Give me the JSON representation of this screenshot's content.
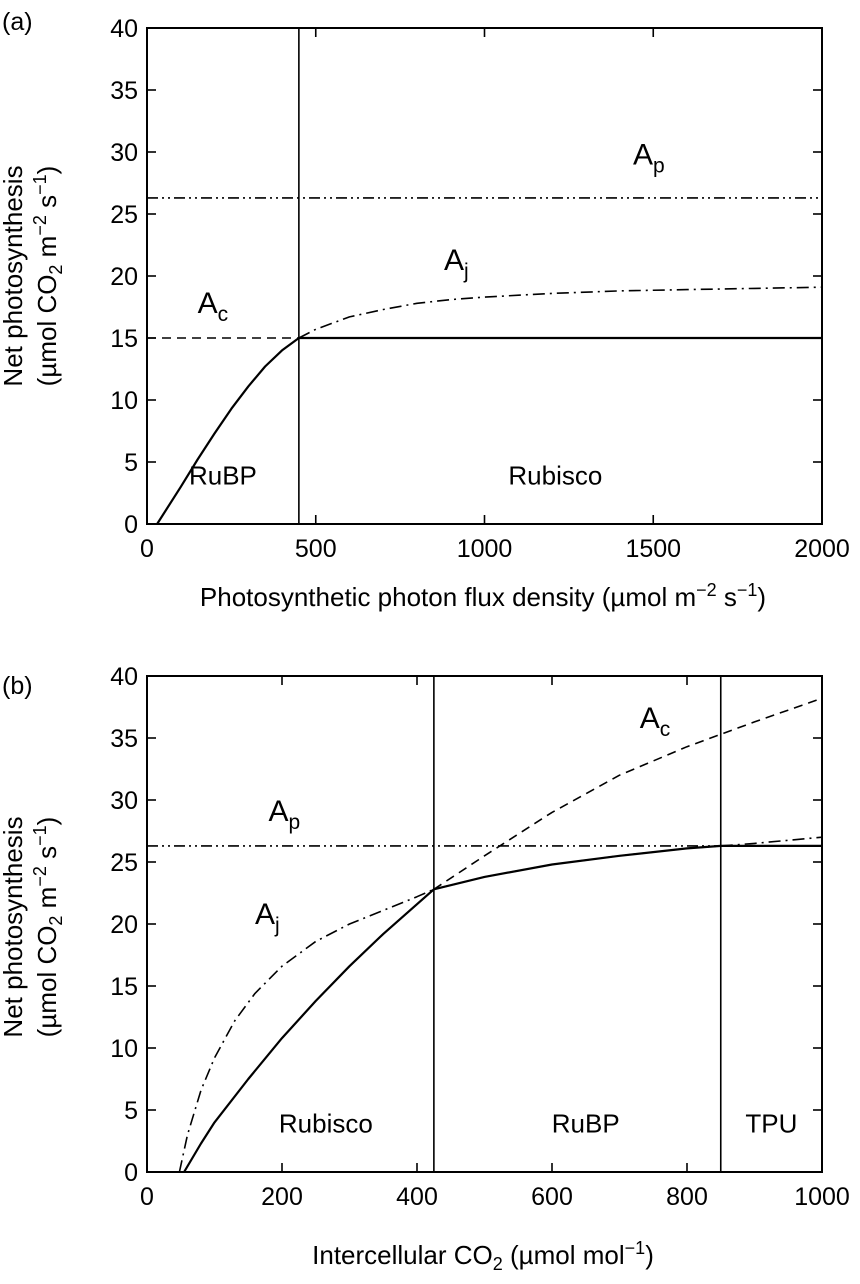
{
  "chart_data": [
    {
      "type": "line",
      "panel_label": "(a)",
      "xlabel": {
        "pre": "Photosynthetic photon flux density (µmol m",
        "sup1": "−2",
        "mid": " s",
        "sup2": "−1",
        "post": ")"
      },
      "ylabel": {
        "line1": "Net photosynthesis",
        "line2": {
          "pre": "(µmol CO",
          "sub": "2",
          "mid": " m",
          "sup1": "−2",
          "mid2": " s",
          "sup2": "−1",
          "post": ")"
        }
      },
      "xlim": [
        0,
        2000
      ],
      "ylim": [
        0,
        40
      ],
      "xticks": [
        0,
        500,
        1000,
        1500,
        2000
      ],
      "yticks": [
        0,
        5,
        10,
        15,
        20,
        25,
        30,
        35,
        40
      ],
      "series": [
        {
          "name": "Ap",
          "label": {
            "main": "A",
            "sub": "p"
          },
          "style": "dash-dot-dot",
          "x": [
            0,
            2000
          ],
          "y": [
            26.3,
            26.3
          ]
        },
        {
          "name": "Aj",
          "label": {
            "main": "A",
            "sub": "j"
          },
          "style": "dash-dot",
          "x": [
            450,
            500,
            600,
            700,
            800,
            900,
            1000,
            1200,
            1400,
            1600,
            1800,
            2000
          ],
          "y": [
            15.0,
            15.7,
            16.7,
            17.3,
            17.8,
            18.1,
            18.3,
            18.6,
            18.8,
            18.9,
            19.0,
            19.1
          ]
        },
        {
          "name": "Ac",
          "label": {
            "main": "A",
            "sub": "c"
          },
          "style": "dashed",
          "x": [
            0,
            450
          ],
          "y": [
            15.0,
            15.0
          ]
        },
        {
          "name": "A",
          "style": "solid",
          "x": [
            30,
            100,
            150,
            200,
            250,
            300,
            350,
            400,
            450,
            2000
          ],
          "y": [
            0,
            3.0,
            5.2,
            7.3,
            9.3,
            11.1,
            12.7,
            14.0,
            15.0,
            15.0
          ]
        }
      ],
      "transitions": [
        450
      ],
      "regions": [
        {
          "label": "RuBP",
          "x": 225,
          "y": 3.2
        },
        {
          "label": "Rubisco",
          "x": 1210,
          "y": 3.2
        }
      ],
      "curve_label_positions": [
        {
          "series": "Ap",
          "x": 1440,
          "y": 29.0
        },
        {
          "series": "Aj",
          "x": 880,
          "y": 20.5
        },
        {
          "series": "Ac",
          "x": 150,
          "y": 17.0
        }
      ],
      "legend": "none",
      "grid": false
    },
    {
      "type": "line",
      "panel_label": "(b)",
      "xlabel": {
        "pre": "Intercellular CO",
        "sub": "2",
        "mid": " (µmol mol",
        "sup": "−1",
        "post": ")"
      },
      "ylabel": {
        "line1": "Net photosynthesis",
        "line2": {
          "pre": "(µmol CO",
          "sub": "2",
          "mid": " m",
          "sup1": "−2",
          "mid2": " s",
          "sup2": "−1",
          "post": ")"
        }
      },
      "xlim": [
        0,
        1000
      ],
      "ylim": [
        0,
        40
      ],
      "xticks": [
        0,
        200,
        400,
        600,
        800,
        1000
      ],
      "yticks": [
        0,
        5,
        10,
        15,
        20,
        25,
        30,
        35,
        40
      ],
      "series": [
        {
          "name": "Ap",
          "label": {
            "main": "A",
            "sub": "p"
          },
          "style": "dash-dot-dot",
          "x": [
            0,
            1000
          ],
          "y": [
            26.3,
            26.3
          ]
        },
        {
          "name": "Ac",
          "label": {
            "main": "A",
            "sub": "c"
          },
          "style": "dashed",
          "x": [
            425,
            500,
            600,
            700,
            800,
            850,
            900,
            1000
          ],
          "y": [
            22.8,
            25.5,
            29.0,
            32.0,
            34.3,
            35.3,
            36.3,
            38.2
          ]
        },
        {
          "name": "Aj",
          "label": {
            "main": "A",
            "sub": "j"
          },
          "style": "dash-dot",
          "x": [
            48,
            60,
            80,
            100,
            130,
            160,
            200,
            250,
            300,
            350,
            400,
            425,
            500,
            600,
            700,
            800,
            850,
            900,
            1000
          ],
          "y": [
            0,
            3.0,
            6.6,
            9.2,
            12.2,
            14.4,
            16.6,
            18.6,
            20.0,
            21.1,
            22.2,
            22.8,
            23.8,
            24.8,
            25.5,
            26.1,
            26.3,
            26.5,
            27.0
          ]
        },
        {
          "name": "A",
          "style": "solid",
          "x": [
            55,
            80,
            100,
            150,
            200,
            250,
            300,
            350,
            400,
            425,
            500,
            600,
            700,
            800,
            850,
            1000
          ],
          "y": [
            0,
            2.3,
            4.0,
            7.5,
            10.8,
            13.8,
            16.6,
            19.2,
            21.6,
            22.8,
            23.8,
            24.8,
            25.5,
            26.1,
            26.3,
            26.3
          ]
        }
      ],
      "transitions": [
        425,
        850
      ],
      "regions": [
        {
          "label": "Rubisco",
          "x": 265,
          "y": 3.2
        },
        {
          "label": "RuBP",
          "x": 650,
          "y": 3.2
        },
        {
          "label": "TPU",
          "x": 925,
          "y": 3.2
        }
      ],
      "curve_label_positions": [
        {
          "series": "Ac",
          "x": 730,
          "y": 35.8
        },
        {
          "series": "Ap",
          "x": 180,
          "y": 28.3
        },
        {
          "series": "Aj",
          "x": 160,
          "y": 20.0
        }
      ],
      "legend": "none",
      "grid": false
    }
  ]
}
